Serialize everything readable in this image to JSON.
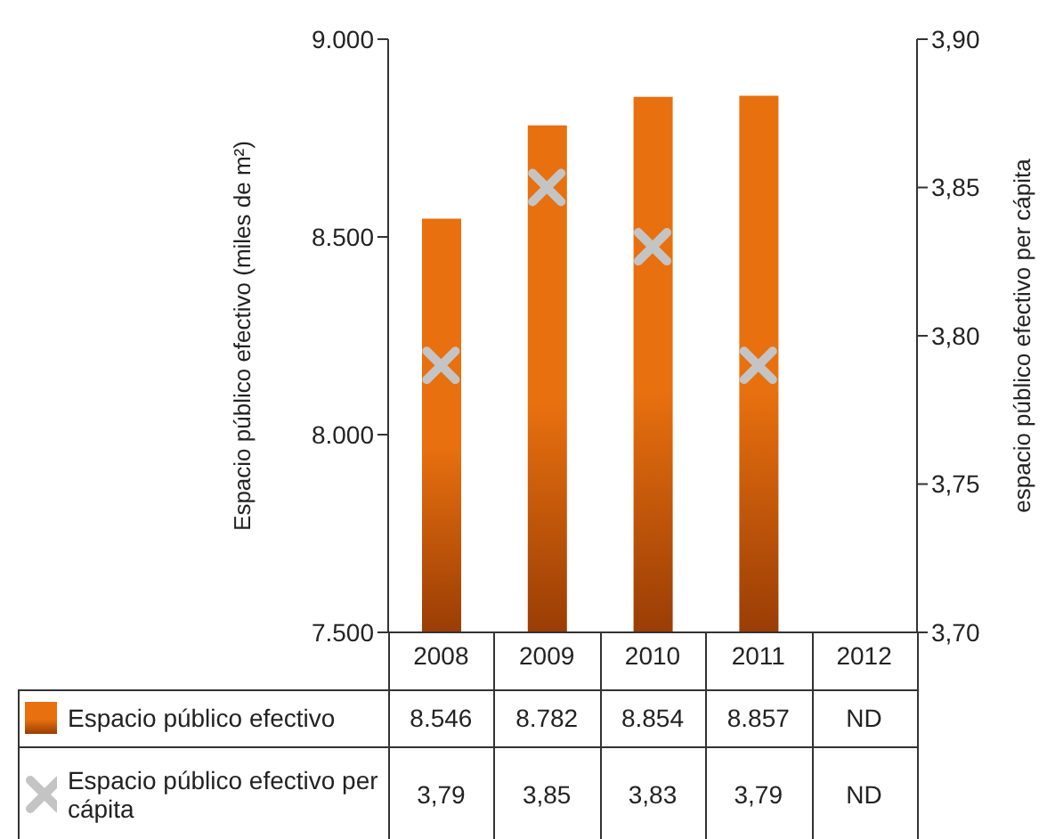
{
  "chart_data": {
    "type": "bar",
    "categories": [
      "2008",
      "2009",
      "2010",
      "2011",
      "2012"
    ],
    "ylabel": "Espacio público efectivo (miles de m²)",
    "y2label": "espacio público efectivo per cápita",
    "ylim": [
      7500,
      9000
    ],
    "yticks": [
      {
        "value": 7500,
        "label": "7.500"
      },
      {
        "value": 8000,
        "label": "8.000"
      },
      {
        "value": 8500,
        "label": "8.500"
      },
      {
        "value": 9000,
        "label": "9.000"
      }
    ],
    "y2lim": [
      3.7,
      3.9
    ],
    "y2ticks": [
      {
        "value": 3.7,
        "label": "3,70"
      },
      {
        "value": 3.75,
        "label": "3,75"
      },
      {
        "value": 3.8,
        "label": "3,80"
      },
      {
        "value": 3.85,
        "label": "3,85"
      },
      {
        "value": 3.9,
        "label": "3,90"
      }
    ],
    "legend": "bottom",
    "marker": "cross",
    "series": [
      {
        "name": "Espacio público efectivo",
        "color": "#e8700f",
        "values": [
          8546,
          8782,
          8854,
          8857,
          null
        ],
        "value_labels": [
          "8.546",
          "8.782",
          "8.854",
          "8.857",
          "ND"
        ]
      },
      {
        "name": "Espacio público efectivo per cápita",
        "type": "scatter",
        "axis": "y2",
        "color": "#c4c4c4",
        "values": [
          3.79,
          3.85,
          3.83,
          3.79,
          null
        ],
        "value_labels": [
          "3,79",
          "3,85",
          "3,83",
          "3,79",
          "ND"
        ]
      }
    ]
  }
}
